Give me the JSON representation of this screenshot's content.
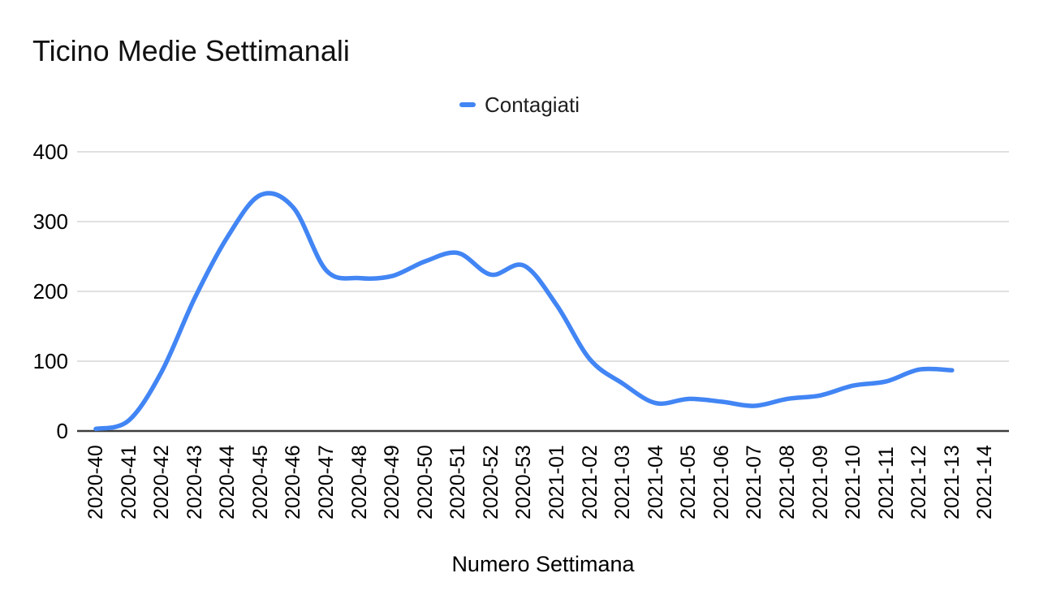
{
  "chart": {
    "title": "Ticino Medie Settimanali",
    "legend_label": "Contagiati",
    "x_axis_title": "Numero Settimana"
  },
  "chart_data": {
    "type": "line",
    "title": "Ticino Medie Settimanali",
    "xlabel": "Numero Settimana",
    "ylabel": "",
    "legend_position": "top-center",
    "grid": true,
    "smooth": true,
    "ylim": [
      0,
      400
    ],
    "yticks": [
      0,
      100,
      200,
      300,
      400
    ],
    "categories": [
      "2020-40",
      "2020-41",
      "2020-42",
      "2020-43",
      "2020-44",
      "2020-45",
      "2020-46",
      "2020-47",
      "2020-48",
      "2020-49",
      "2020-50",
      "2020-51",
      "2020-52",
      "2020-53",
      "2021-01",
      "2021-02",
      "2021-03",
      "2021-04",
      "2021-05",
      "2021-06",
      "2021-07",
      "2021-08",
      "2021-09",
      "2021-10",
      "2021-11",
      "2021-12",
      "2021-13",
      "2021-14"
    ],
    "series": [
      {
        "name": "Contagiati",
        "color": "#4285f4",
        "values": [
          3,
          15,
          85,
          190,
          278,
          338,
          320,
          230,
          219,
          222,
          243,
          255,
          224,
          237,
          180,
          103,
          68,
          40,
          46,
          42,
          36,
          46,
          51,
          65,
          71,
          88,
          87,
          null
        ]
      }
    ],
    "colors": {
      "line": "#4285f4",
      "gridline": "#e0e0e0",
      "axis_line": "#3c3c3c",
      "tick_label": "#000000",
      "title": "#111111"
    }
  }
}
